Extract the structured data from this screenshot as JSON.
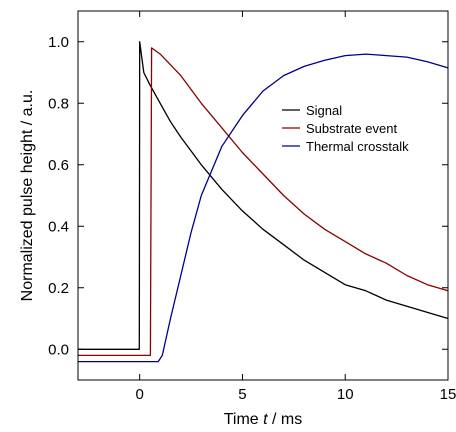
{
  "chart_data": {
    "type": "line",
    "xlabel_parts": [
      "Time ",
      "t",
      " / ms"
    ],
    "ylabel": "Normalized pulse height / a.u.",
    "xlim": [
      -3,
      15
    ],
    "ylim": [
      -0.1,
      1.1
    ],
    "xticks": [
      0,
      5,
      10,
      15
    ],
    "yticks": [
      0.0,
      0.2,
      0.4,
      0.6,
      0.8,
      1.0
    ],
    "ytick_labels": [
      "0.0",
      "0.2",
      "0.4",
      "0.6",
      "0.8",
      "1.0"
    ],
    "grid": false,
    "legend_position": "right",
    "series": [
      {
        "name": "Signal",
        "color": "#000000",
        "x": [
          -3,
          -0.02,
          0,
          0.2,
          0.5,
          1,
          1.5,
          2,
          3,
          4,
          5,
          6,
          7,
          8,
          9,
          10,
          11,
          12,
          13,
          14,
          15
        ],
        "y": [
          0.0,
          0.0,
          1.0,
          0.9,
          0.86,
          0.8,
          0.74,
          0.69,
          0.6,
          0.52,
          0.45,
          0.39,
          0.34,
          0.29,
          0.25,
          0.21,
          0.19,
          0.16,
          0.14,
          0.12,
          0.1
        ]
      },
      {
        "name": "Substrate event",
        "color": "#8b0000",
        "x": [
          -3,
          0.52,
          0.58,
          1,
          2,
          3,
          4,
          5,
          6,
          7,
          8,
          9,
          10,
          11,
          12,
          13,
          14,
          15
        ],
        "y": [
          -0.02,
          -0.02,
          0.98,
          0.96,
          0.89,
          0.8,
          0.72,
          0.64,
          0.57,
          0.5,
          0.44,
          0.39,
          0.35,
          0.31,
          0.28,
          0.24,
          0.21,
          0.19
        ]
      },
      {
        "name": "Thermal crosstalk",
        "color": "#00008b",
        "x": [
          -3,
          0.9,
          1.1,
          1.5,
          2,
          2.5,
          3,
          4,
          5,
          6,
          7,
          8,
          9,
          10,
          11,
          12,
          13,
          14,
          15
        ],
        "y": [
          -0.04,
          -0.04,
          -0.02,
          0.1,
          0.24,
          0.38,
          0.5,
          0.66,
          0.76,
          0.84,
          0.89,
          0.92,
          0.94,
          0.955,
          0.96,
          0.955,
          0.95,
          0.935,
          0.915
        ]
      }
    ]
  }
}
